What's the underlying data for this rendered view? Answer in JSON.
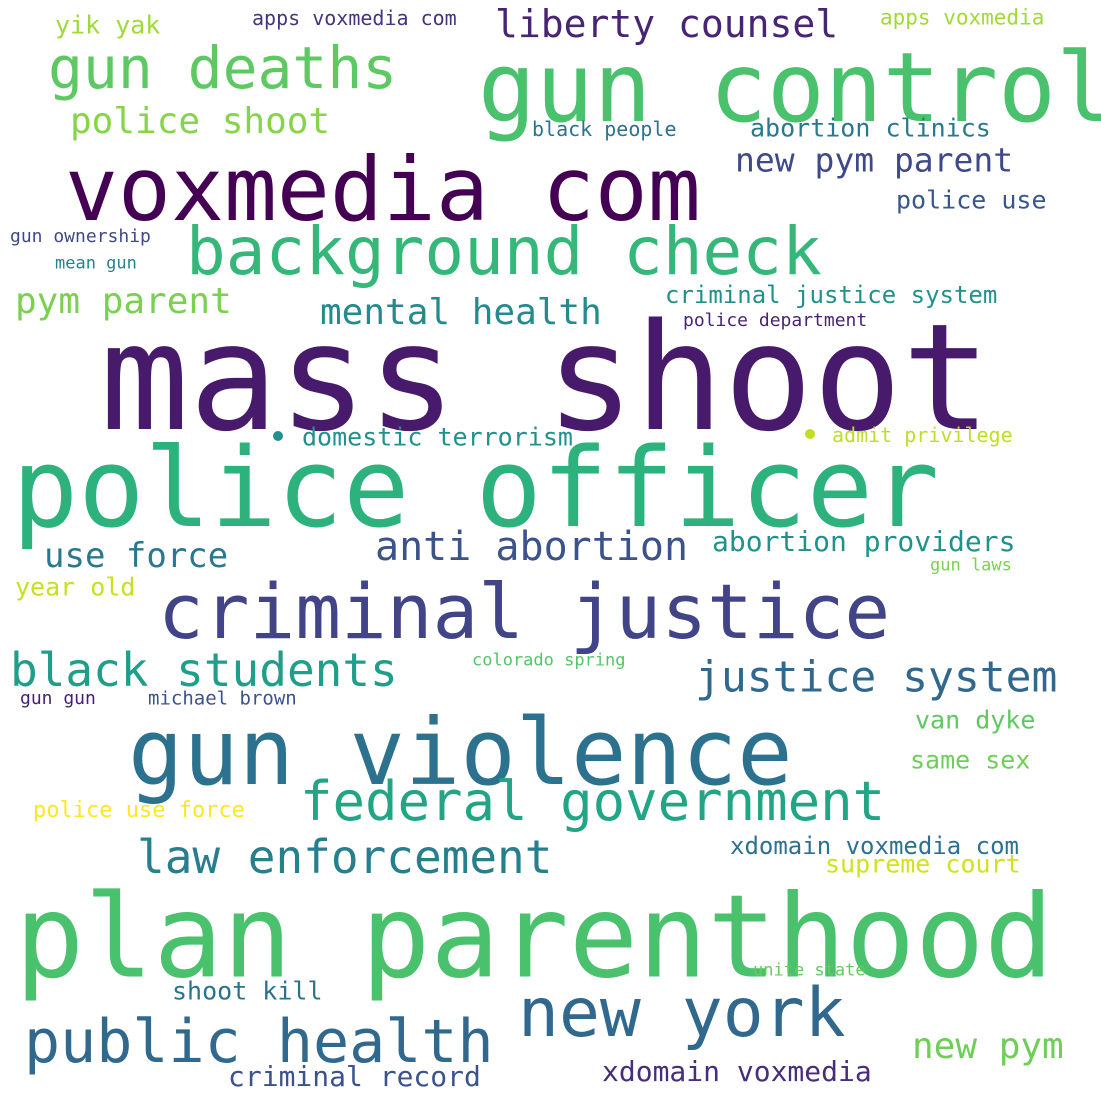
{
  "words": [
    {
      "text": "mass shoot",
      "color": "#481a6c"
    },
    {
      "text": "police officer",
      "color": "#2db27d"
    },
    {
      "text": "plan parenthood",
      "color": "#4ac16d"
    },
    {
      "text": "gun control",
      "color": "#4ac16d"
    },
    {
      "text": "voxmedia com",
      "color": "#440154"
    },
    {
      "text": "gun violence",
      "color": "#2c728e"
    },
    {
      "text": "criminal justice",
      "color": "#414487"
    },
    {
      "text": "background check",
      "color": "#35b779"
    },
    {
      "text": "new york",
      "color": "#31688e"
    },
    {
      "text": "federal government",
      "color": "#21a585"
    },
    {
      "text": "public health",
      "color": "#31688e"
    },
    {
      "text": "gun deaths",
      "color": "#5ec962"
    },
    {
      "text": "law enforcement",
      "color": "#277f8e"
    },
    {
      "text": "black students",
      "color": "#1f9e89"
    },
    {
      "text": "justice system",
      "color": "#31688e"
    },
    {
      "text": "anti abortion",
      "color": "#3b528b"
    },
    {
      "text": "liberty counsel",
      "color": "#482475"
    },
    {
      "text": "mental health",
      "color": "#238a8d"
    },
    {
      "text": "new pym parent",
      "color": "#3e4989"
    },
    {
      "text": "use force",
      "color": "#2a788e"
    },
    {
      "text": "pym parent",
      "color": "#7ad151"
    },
    {
      "text": "police shoot",
      "color": "#86d549"
    },
    {
      "text": "abortion providers",
      "color": "#21918c"
    },
    {
      "text": "new pym",
      "color": "#6ece58"
    },
    {
      "text": "criminal record",
      "color": "#3b528b"
    },
    {
      "text": "xdomain voxmedia",
      "color": "#472d7b"
    },
    {
      "text": "xdomain voxmedia com",
      "color": "#2c728e"
    },
    {
      "text": "criminal justice system",
      "color": "#21918c"
    },
    {
      "text": "domestic terrorism",
      "color": "#21918c"
    },
    {
      "text": "abortion clinics",
      "color": "#2a788e"
    },
    {
      "text": "police use",
      "color": "#39568c"
    },
    {
      "text": "supreme court",
      "color": "#d2e21b"
    },
    {
      "text": "van dyke",
      "color": "#5ec962"
    },
    {
      "text": "same sex",
      "color": "#6ece58"
    },
    {
      "text": "shoot kill",
      "color": "#2c728e"
    },
    {
      "text": "year old",
      "color": "#c8e020"
    },
    {
      "text": "yik yak",
      "color": "#a0da39"
    },
    {
      "text": "apps voxmedia com",
      "color": "#46337e"
    },
    {
      "text": "apps voxmedia",
      "color": "#a0da39"
    },
    {
      "text": "black people",
      "color": "#2c728e"
    },
    {
      "text": "police use force",
      "color": "#fde725"
    },
    {
      "text": "admit privilege",
      "color": "#bddf26"
    },
    {
      "text": "police department",
      "color": "#482475"
    },
    {
      "text": "gun ownership",
      "color": "#3e4989"
    },
    {
      "text": "mean gun",
      "color": "#26828e"
    },
    {
      "text": "michael brown",
      "color": "#3b528b"
    },
    {
      "text": "gun gun",
      "color": "#481f70"
    },
    {
      "text": "colorado spring",
      "color": "#54c568"
    },
    {
      "text": "gun laws",
      "color": "#7ad151"
    },
    {
      "text": "unite state",
      "color": "#65cb5e"
    }
  ],
  "dots": [
    {
      "color": "#21918c"
    },
    {
      "color": "#bddf26"
    }
  ]
}
